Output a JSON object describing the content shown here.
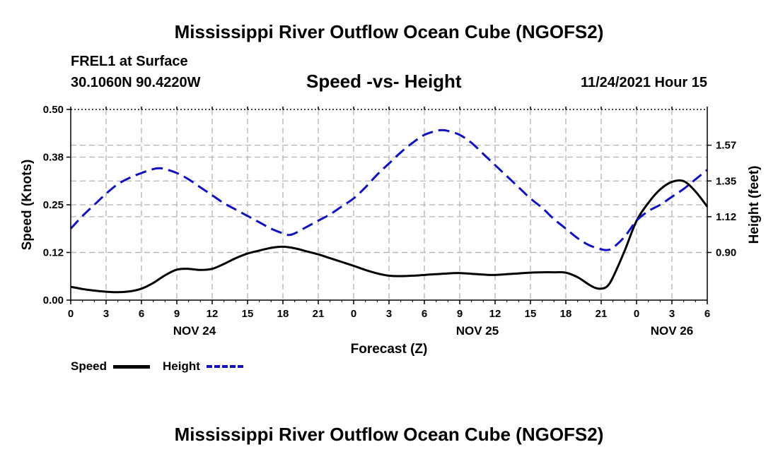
{
  "page": {
    "title": "Mississippi River Outflow Ocean Cube (NGOFS2)",
    "footer_title": "Mississippi River Outflow Ocean Cube (NGOFS2)",
    "station_name": "FREL1 at Surface",
    "coordinates": "30.1060N  90.4220W",
    "subtitle": "Speed -vs- Height",
    "datetime": "11/24/2021 Hour 15"
  },
  "legend": {
    "speed_label": "Speed",
    "height_label": "Height"
  },
  "colors": {
    "speed": "#000000",
    "height": "#1010c8",
    "grid": "#b4b4b4"
  },
  "chart_data": {
    "type": "line",
    "title": "Speed -vs- Height",
    "xlabel": "Forecast (Z)",
    "ylabel": "Speed (Knots)",
    "y2label": "Height (feet)",
    "xlim": [
      0,
      54
    ],
    "ylim": [
      0,
      0.5
    ],
    "y2lim": [
      0.6,
      1.8
    ],
    "x_tick_labels": [
      "0",
      "3",
      "6",
      "9",
      "12",
      "15",
      "18",
      "21",
      "0",
      "3",
      "6",
      "9",
      "12",
      "15",
      "18",
      "21",
      "0",
      "3",
      "6"
    ],
    "date_labels": [
      {
        "label": "NOV 24",
        "x": 10.5
      },
      {
        "label": "NOV 25",
        "x": 34.5
      },
      {
        "label": "NOV 26",
        "x": 51
      }
    ],
    "y_ticks": [
      0.0,
      0.125,
      0.25,
      0.375,
      0.5
    ],
    "y_tick_labels": [
      "0.00",
      "0.12",
      "0.25",
      "0.38",
      "0.50"
    ],
    "y2_ticks": [
      0.9,
      1.125,
      1.35,
      1.575
    ],
    "y2_tick_labels": [
      "0.90",
      "1.12",
      "1.35",
      "1.57"
    ],
    "grid": true,
    "series": [
      {
        "name": "Speed",
        "axis": "left",
        "style": "solid",
        "x": [
          0,
          1,
          2,
          3,
          4,
          5,
          6,
          7,
          8,
          9,
          10,
          11,
          12,
          13,
          14,
          15,
          16,
          17,
          18,
          19,
          20,
          21,
          22,
          23,
          24,
          25,
          26,
          27,
          28,
          29,
          30,
          31,
          32,
          33,
          34,
          35,
          36,
          37,
          38,
          39,
          40,
          41,
          42,
          43,
          44,
          44.5,
          45,
          45.5,
          46,
          47,
          48,
          49,
          50,
          51,
          52,
          53,
          54
        ],
        "values": [
          0.035,
          0.029,
          0.025,
          0.022,
          0.021,
          0.023,
          0.03,
          0.045,
          0.065,
          0.08,
          0.082,
          0.079,
          0.082,
          0.095,
          0.11,
          0.122,
          0.13,
          0.137,
          0.14,
          0.136,
          0.128,
          0.12,
          0.11,
          0.1,
          0.09,
          0.079,
          0.07,
          0.064,
          0.063,
          0.064,
          0.066,
          0.068,
          0.07,
          0.071,
          0.069,
          0.067,
          0.066,
          0.068,
          0.07,
          0.072,
          0.073,
          0.073,
          0.072,
          0.06,
          0.04,
          0.032,
          0.03,
          0.036,
          0.06,
          0.13,
          0.208,
          0.255,
          0.29,
          0.31,
          0.312,
          0.285,
          0.245
        ]
      },
      {
        "name": "Height",
        "axis": "right",
        "style": "dashed",
        "x": [
          0,
          1,
          2,
          3,
          4,
          5,
          6,
          7,
          7.5,
          8,
          9,
          10,
          11,
          12,
          13,
          14,
          15,
          16,
          17,
          18,
          18.5,
          19,
          20,
          21,
          22,
          23,
          24,
          25,
          26,
          27,
          28,
          29,
          30,
          31,
          31.5,
          32,
          33,
          34,
          35,
          36,
          37,
          38,
          39,
          40,
          41,
          42,
          43,
          44,
          45,
          45.5,
          46,
          47,
          48,
          49,
          50,
          51,
          52,
          53,
          54
        ],
        "values": [
          1.05,
          1.13,
          1.2,
          1.27,
          1.33,
          1.37,
          1.4,
          1.425,
          1.43,
          1.425,
          1.4,
          1.36,
          1.31,
          1.26,
          1.21,
          1.17,
          1.13,
          1.09,
          1.05,
          1.02,
          1.01,
          1.02,
          1.06,
          1.1,
          1.14,
          1.19,
          1.24,
          1.31,
          1.39,
          1.46,
          1.53,
          1.59,
          1.64,
          1.665,
          1.67,
          1.665,
          1.64,
          1.59,
          1.52,
          1.45,
          1.38,
          1.31,
          1.24,
          1.18,
          1.11,
          1.05,
          0.99,
          0.945,
          0.92,
          0.915,
          0.93,
          1.0,
          1.1,
          1.16,
          1.2,
          1.25,
          1.3,
          1.36,
          1.42
        ]
      }
    ]
  }
}
